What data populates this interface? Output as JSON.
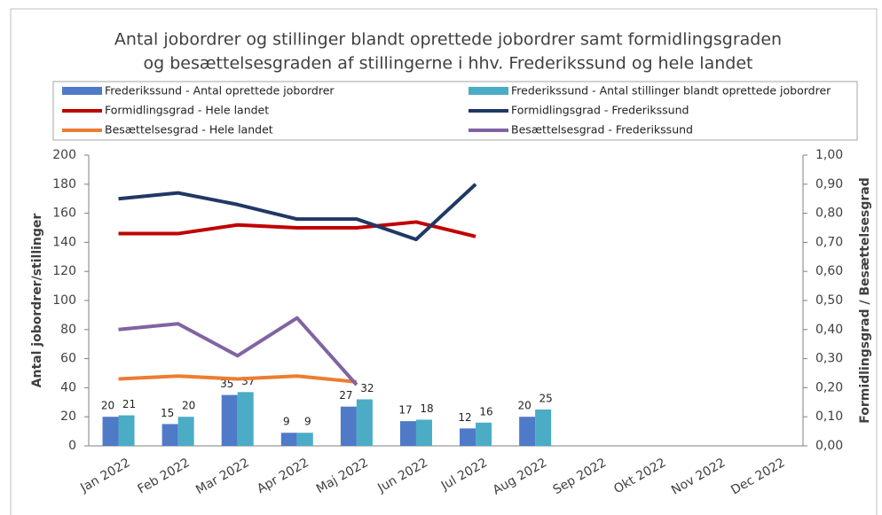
{
  "chart_data": {
    "type": "combo",
    "title": [
      "Antal jobordrer og stillinger blandt oprettede jobordrer samt formidlingsgraden",
      "og besættelsesgraden af stillingerne i hhv. Frederikssund og hele landet"
    ],
    "y_label": "Antal jobordrer/stillinger",
    "y2_label": "Formidlingsgrad / Besættelsesgrad",
    "categories": [
      "Jan 2022",
      "Feb 2022",
      "Mar 2022",
      "Apr 2022",
      "Maj 2022",
      "Jun 2022",
      "Jul 2022",
      "Aug 2022",
      "Sep 2022",
      "Okt 2022",
      "Nov 2022",
      "Dec 2022"
    ],
    "ylim": [
      0,
      200
    ],
    "yticks": [
      0,
      20,
      40,
      60,
      80,
      100,
      120,
      140,
      160,
      180,
      200
    ],
    "y2lim": [
      0,
      1
    ],
    "y2ticks": [
      {
        "value": 0,
        "label": "0,00"
      },
      {
        "value": 0.1,
        "label": "0,10"
      },
      {
        "value": 0.2,
        "label": "0,20"
      },
      {
        "value": 0.3,
        "label": "0,30"
      },
      {
        "value": 0.4,
        "label": "0,40"
      },
      {
        "value": 0.5,
        "label": "0,50"
      },
      {
        "value": 0.6,
        "label": "0,60"
      },
      {
        "value": 0.7,
        "label": "0,70"
      },
      {
        "value": 0.8,
        "label": "0,80"
      },
      {
        "value": 0.9,
        "label": "0,90"
      },
      {
        "value": 1,
        "label": "1,00"
      }
    ],
    "legend": "top",
    "series": [
      {
        "name": "Frederikssund - Antal oprettede jobordrer",
        "type": "bar",
        "color": "#4f7ac7",
        "values": [
          20,
          15,
          35,
          9,
          27,
          17,
          12,
          20,
          null,
          null,
          null,
          null
        ]
      },
      {
        "name": "Frederikssund - Antal stillinger blandt oprettede jobordrer",
        "type": "bar",
        "color": "#4bacc6",
        "values": [
          21,
          20,
          37,
          9,
          32,
          18,
          16,
          25,
          null,
          null,
          null,
          null
        ]
      },
      {
        "name": "Formidlingsgrad - Hele landet",
        "type": "line",
        "axis": "y2",
        "color": "#c00000",
        "values": [
          0.73,
          0.73,
          0.76,
          0.75,
          0.75,
          0.77,
          0.72,
          null,
          null,
          null,
          null,
          null
        ]
      },
      {
        "name": "Formidlingsgrad - Frederikssund",
        "type": "line",
        "axis": "y2",
        "color": "#203864",
        "values": [
          0.85,
          0.87,
          0.83,
          0.78,
          0.78,
          0.71,
          0.9,
          null,
          null,
          null,
          null,
          null
        ]
      },
      {
        "name": "Besættelsesgrad - Hele landet",
        "type": "line",
        "axis": "y2",
        "color": "#ed7d31",
        "values": [
          0.23,
          0.24,
          0.23,
          0.24,
          0.22,
          null,
          null,
          null,
          null,
          null,
          null,
          null
        ]
      },
      {
        "name": "Besættelsesgrad - Frederikssund",
        "type": "line",
        "axis": "y2",
        "color": "#8064a2",
        "values": [
          0.4,
          0.42,
          0.31,
          0.44,
          0.21,
          null,
          null,
          null,
          null,
          null,
          null,
          null
        ]
      }
    ]
  }
}
